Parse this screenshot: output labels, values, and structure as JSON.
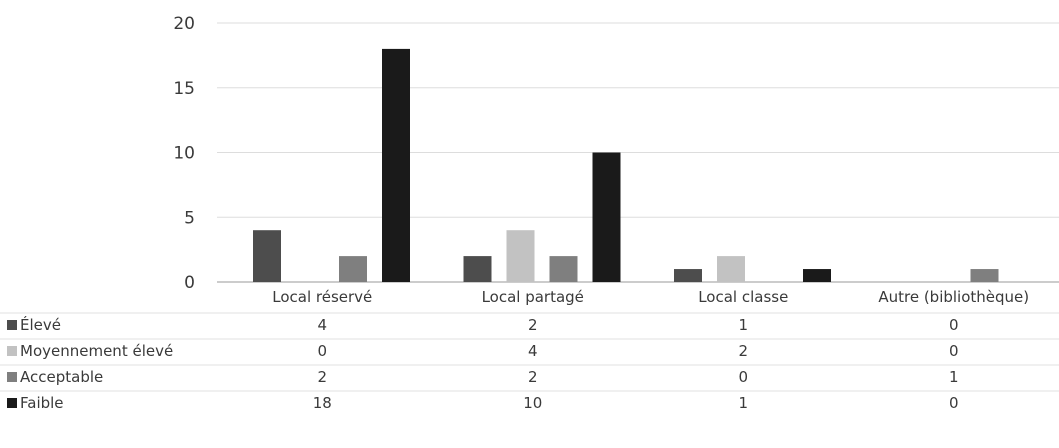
{
  "chart_data": {
    "type": "bar",
    "categories": [
      "Local réservé",
      "Local partagé",
      "Local classe",
      "Autre (bibliothèque)"
    ],
    "series": [
      {
        "name": "Élevé",
        "values": [
          4,
          2,
          1,
          0
        ],
        "color": "#4d4d4d"
      },
      {
        "name": "Moyennement élevé",
        "values": [
          0,
          4,
          2,
          0
        ],
        "color": "#c2c2c2"
      },
      {
        "name": "Acceptable",
        "values": [
          2,
          2,
          0,
          1
        ],
        "color": "#7f7f7f"
      },
      {
        "name": "Faible",
        "values": [
          18,
          10,
          1,
          0
        ],
        "color": "#1a1a1a"
      }
    ],
    "yticks": [
      "0",
      "5",
      "10",
      "15",
      "20"
    ],
    "ylim": [
      0,
      20
    ],
    "grid": true,
    "data_table": true,
    "legend": "left-in-data-table"
  }
}
